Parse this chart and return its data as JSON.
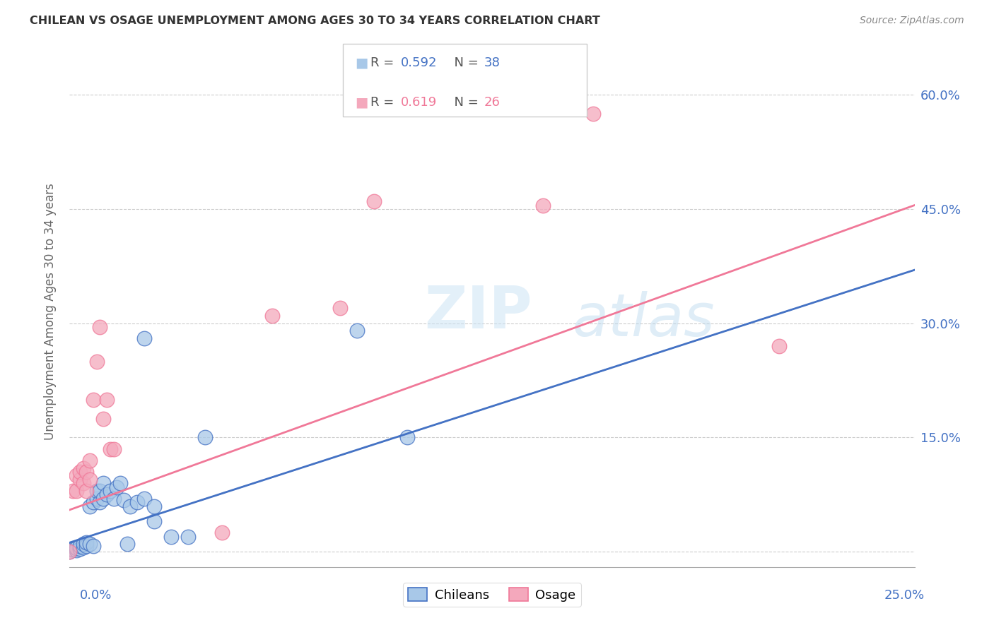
{
  "title": "CHILEAN VS OSAGE UNEMPLOYMENT AMONG AGES 30 TO 34 YEARS CORRELATION CHART",
  "source": "Source: ZipAtlas.com",
  "ylabel": "Unemployment Among Ages 30 to 34 years",
  "yticks": [
    0.0,
    0.15,
    0.3,
    0.45,
    0.6
  ],
  "ytick_labels": [
    "",
    "15.0%",
    "30.0%",
    "45.0%",
    "60.0%"
  ],
  "xlim": [
    0.0,
    0.25
  ],
  "ylim": [
    -0.02,
    0.65
  ],
  "chilean_color": "#a8c8e8",
  "osage_color": "#f4a8bc",
  "chilean_line_color": "#4472c4",
  "osage_line_color": "#f07898",
  "chilean_scatter": [
    [
      0.0,
      0.0
    ],
    [
      0.001,
      0.003
    ],
    [
      0.002,
      0.002
    ],
    [
      0.002,
      0.005
    ],
    [
      0.003,
      0.004
    ],
    [
      0.003,
      0.008
    ],
    [
      0.004,
      0.006
    ],
    [
      0.004,
      0.01
    ],
    [
      0.005,
      0.008
    ],
    [
      0.005,
      0.012
    ],
    [
      0.006,
      0.01
    ],
    [
      0.006,
      0.06
    ],
    [
      0.007,
      0.008
    ],
    [
      0.007,
      0.065
    ],
    [
      0.008,
      0.07
    ],
    [
      0.008,
      0.08
    ],
    [
      0.009,
      0.065
    ],
    [
      0.009,
      0.08
    ],
    [
      0.01,
      0.07
    ],
    [
      0.01,
      0.09
    ],
    [
      0.011,
      0.075
    ],
    [
      0.012,
      0.08
    ],
    [
      0.013,
      0.07
    ],
    [
      0.014,
      0.085
    ],
    [
      0.015,
      0.09
    ],
    [
      0.016,
      0.068
    ],
    [
      0.017,
      0.01
    ],
    [
      0.018,
      0.06
    ],
    [
      0.02,
      0.065
    ],
    [
      0.022,
      0.07
    ],
    [
      0.022,
      0.28
    ],
    [
      0.025,
      0.04
    ],
    [
      0.025,
      0.06
    ],
    [
      0.03,
      0.02
    ],
    [
      0.035,
      0.02
    ],
    [
      0.04,
      0.15
    ],
    [
      0.085,
      0.29
    ],
    [
      0.1,
      0.15
    ]
  ],
  "osage_scatter": [
    [
      0.0,
      0.0
    ],
    [
      0.001,
      0.08
    ],
    [
      0.002,
      0.1
    ],
    [
      0.002,
      0.08
    ],
    [
      0.003,
      0.095
    ],
    [
      0.003,
      0.105
    ],
    [
      0.004,
      0.09
    ],
    [
      0.004,
      0.11
    ],
    [
      0.005,
      0.08
    ],
    [
      0.005,
      0.105
    ],
    [
      0.006,
      0.095
    ],
    [
      0.006,
      0.12
    ],
    [
      0.007,
      0.2
    ],
    [
      0.008,
      0.25
    ],
    [
      0.009,
      0.295
    ],
    [
      0.01,
      0.175
    ],
    [
      0.011,
      0.2
    ],
    [
      0.012,
      0.135
    ],
    [
      0.013,
      0.135
    ],
    [
      0.045,
      0.025
    ],
    [
      0.06,
      0.31
    ],
    [
      0.08,
      0.32
    ],
    [
      0.09,
      0.46
    ],
    [
      0.14,
      0.455
    ],
    [
      0.155,
      0.575
    ],
    [
      0.21,
      0.27
    ]
  ],
  "chilean_line_x": [
    0.0,
    0.25
  ],
  "chilean_line_y": [
    0.012,
    0.37
  ],
  "osage_line_x": [
    0.0,
    0.25
  ],
  "osage_line_y": [
    0.055,
    0.455
  ],
  "legend_row1_r": "0.592",
  "legend_row1_n": "38",
  "legend_row2_r": "0.619",
  "legend_row2_n": "26",
  "bg_color": "#ffffff",
  "grid_color": "#cccccc",
  "tick_color": "#4472c4",
  "title_color": "#333333",
  "source_color": "#888888",
  "ylabel_color": "#666666"
}
